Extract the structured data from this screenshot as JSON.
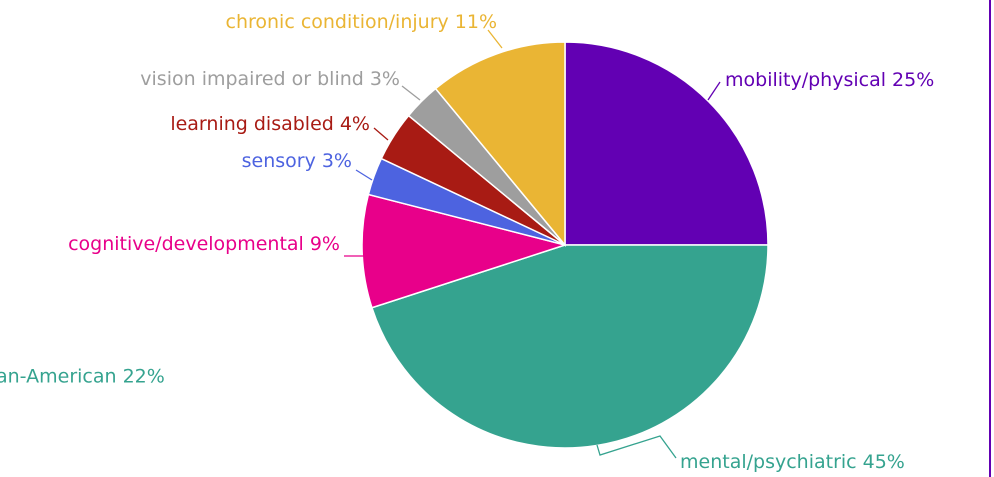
{
  "chart_data": {
    "type": "pie",
    "categories": [
      "mobility/physical",
      "mental/psychiatric",
      "cognitive/developmental",
      "sensory",
      "learning disabled",
      "vision impaired or blind",
      "chronic condition/injury"
    ],
    "values": [
      25,
      45,
      9,
      3,
      4,
      3,
      11
    ],
    "value_labels": [
      "25%",
      "45%",
      "9%",
      "3%",
      "4%",
      "3%",
      "11%"
    ],
    "colors": [
      "#6200b3",
      "#35a38f",
      "#e8008a",
      "#4d63e0",
      "#a81b14",
      "#9e9e9e",
      "#eab534"
    ],
    "clipped_label": {
      "text": "an-American 22%",
      "color": "#35a38f"
    }
  }
}
